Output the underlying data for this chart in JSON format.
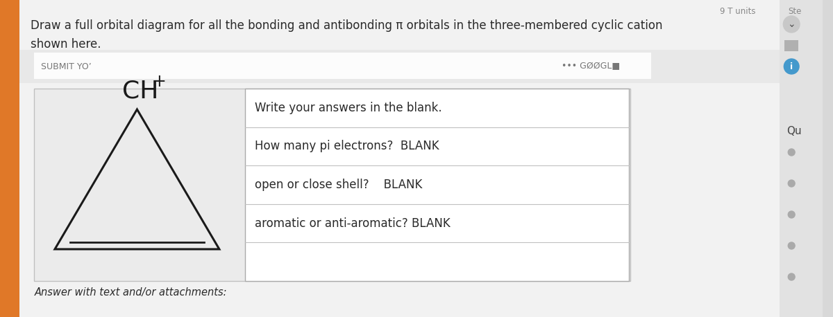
{
  "bg_color": "#d8d8d8",
  "page_bg": "#f2f2f2",
  "title_line1": "Draw a full orbital diagram for all the bonding and antibonding π orbitals in the three-membered cyclic cation",
  "title_line2": "shown here.",
  "title_fontsize": 12.0,
  "ch_label": "CH",
  "ch_superscript": "+",
  "rows": [
    "Write your answers in the blank.",
    "How many pi electrons?  BLANK",
    "open or close shell?    BLANK",
    "aromatic or anti-aromatic? BLANK",
    ""
  ],
  "answer_label": "Answer with text and/or attachments:",
  "answer_fontsize": 10.5,
  "text_color": "#2a2a2a",
  "orange_bar_color": "#e07828",
  "sidebar_bg": "#e8e8e8",
  "content_bg": "#ebebeb",
  "table_bg": "white",
  "blur_bar_color": "#f0f0f0",
  "right_sidebar_bg": "#e2e2e2"
}
